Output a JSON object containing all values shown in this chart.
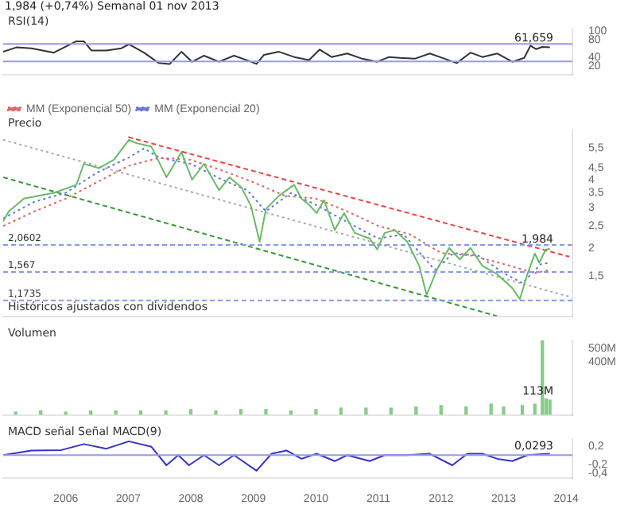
{
  "chart_data": [
    {
      "type": "line",
      "title": "1,984 (+0,74%)   Semanal 01 nov 2013",
      "subtitle": "RSI(14)",
      "xlim": [
        2005.0,
        2014.1
      ],
      "ylim": [
        0,
        105
      ],
      "yticks": [
        20,
        40,
        80,
        100
      ],
      "tick_labels": "y",
      "grid": false,
      "legend": false,
      "ref_lines": [
        {
          "axis": "y",
          "value": 70,
          "color": "#9999ee"
        },
        {
          "axis": "y",
          "value": 30,
          "color": "#9999ee"
        }
      ],
      "annotations": [
        {
          "text": "61,659",
          "y": 62
        }
      ],
      "series": [
        {
          "color": "#333333",
          "x": [
            2005.0,
            2005.21,
            2005.45,
            2005.81,
            2006.17,
            2006.29,
            2006.41,
            2006.65,
            2006.89,
            2007.01,
            2007.25,
            2007.49,
            2007.66,
            2007.85,
            2008.02,
            2008.21,
            2008.45,
            2008.69,
            2008.93,
            2009.05,
            2009.17,
            2009.41,
            2009.65,
            2009.89,
            2010.06,
            2010.25,
            2010.5,
            2010.74,
            2010.98,
            2011.17,
            2011.34,
            2011.58,
            2011.82,
            2012.06,
            2012.25,
            2012.47,
            2012.66,
            2012.9,
            2013.14,
            2013.33,
            2013.43,
            2013.52,
            2013.62,
            2013.74
          ],
          "values": [
            52,
            62,
            60,
            50,
            76,
            76,
            55,
            55,
            60,
            69,
            50,
            26,
            24,
            52,
            29,
            43,
            29,
            43,
            31,
            24,
            45,
            52,
            40,
            33,
            57,
            40,
            48,
            36,
            29,
            40,
            38,
            36,
            48,
            36,
            26,
            50,
            40,
            48,
            29,
            38,
            66,
            58,
            63,
            62
          ]
        }
      ]
    },
    {
      "type": "line",
      "title": "Precio",
      "xlim": [
        2005.0,
        2014.1
      ],
      "ylim": [
        1,
        6.6
      ],
      "log": true,
      "tick_labels": "y",
      "grid": false,
      "legend": "top left",
      "yticks": [
        {
          "value": 1.5,
          "label": "1,5"
        },
        2,
        {
          "value": 2.5,
          "label": "2,5"
        },
        3,
        {
          "value": 3.5,
          "label": "3,5"
        },
        4,
        {
          "value": 4.5,
          "label": "4,5"
        },
        {
          "value": 5.5,
          "label": "5,5"
        }
      ],
      "ref_lines": [
        {
          "axis": "y",
          "value": 2.0602,
          "label": "2,0602",
          "color": "#8899ee",
          "line_style": "dashed"
        },
        {
          "axis": "y",
          "value": 1.567,
          "label": "1,567",
          "color": "#8899ee",
          "line_style": "dashed"
        },
        {
          "axis": "y",
          "value": 1.1735,
          "label": "1,1735",
          "color": "#8899ee",
          "line_style": "dashed"
        }
      ],
      "annotations": [
        "Históricos ajustados con dividendos",
        {
          "text": "1,984",
          "y": 1.984
        }
      ],
      "series": [
        {
          "color": "#66bb66",
          "x": [
            2005.0,
            2005.09,
            2005.33,
            2005.81,
            2006.17,
            2006.29,
            2006.53,
            2006.77,
            2007.01,
            2007.13,
            2007.37,
            2007.61,
            2007.85,
            2008.02,
            2008.21,
            2008.45,
            2008.62,
            2008.81,
            2008.96,
            2009.1,
            2009.2,
            2009.41,
            2009.65,
            2009.77,
            2009.89,
            2010.01,
            2010.13,
            2010.3,
            2010.45,
            2010.62,
            2010.86,
            2010.98,
            2011.1,
            2011.26,
            2011.46,
            2011.65,
            2011.77,
            2011.94,
            2012.13,
            2012.3,
            2012.47,
            2012.66,
            2012.9,
            2013.14,
            2013.26,
            2013.38,
            2013.5,
            2013.57,
            2013.67,
            2013.74
          ],
          "values": [
            2.62,
            2.9,
            3.3,
            3.5,
            3.8,
            4.7,
            4.5,
            4.9,
            6.0,
            5.8,
            5.6,
            4.1,
            5.3,
            4.0,
            4.7,
            3.6,
            4.1,
            3.7,
            3.07,
            2.13,
            2.97,
            3.4,
            3.8,
            3.3,
            3.1,
            2.85,
            3.25,
            2.4,
            2.85,
            2.33,
            2.2,
            1.97,
            2.33,
            2.4,
            2.13,
            1.67,
            1.24,
            1.62,
            2.0,
            1.78,
            2.0,
            1.67,
            1.53,
            1.33,
            1.19,
            1.53,
            1.89,
            1.72,
            1.96,
            1.984
          ]
        },
        {
          "name": "MM (Exponencial 50)",
          "color": "#dd6666",
          "line_style": "dotted",
          "x": [
            2005.0,
            2005.5,
            2006.0,
            2006.5,
            2007.0,
            2007.5,
            2008.0,
            2008.5,
            2009.0,
            2009.5,
            2010.0,
            2010.5,
            2011.0,
            2011.5,
            2012.0,
            2012.5,
            2013.0,
            2013.5,
            2013.74
          ],
          "values": [
            2.5,
            2.9,
            3.3,
            3.9,
            4.6,
            5.0,
            4.9,
            4.4,
            3.9,
            3.4,
            3.3,
            2.9,
            2.5,
            2.3,
            1.9,
            1.85,
            1.7,
            1.55,
            1.6
          ]
        },
        {
          "name": "MM (Exponencial 20)",
          "color": "#6677dd",
          "line_style": "dotted",
          "x": [
            2005.0,
            2005.5,
            2006.0,
            2006.5,
            2007.0,
            2007.25,
            2007.5,
            2008.0,
            2008.5,
            2008.9,
            2009.2,
            2009.6,
            2010.0,
            2010.5,
            2011.0,
            2011.4,
            2011.9,
            2012.2,
            2012.6,
            2013.0,
            2013.3,
            2013.6,
            2013.74
          ],
          "values": [
            2.7,
            3.2,
            3.5,
            4.3,
            5.0,
            5.5,
            5.0,
            4.7,
            4.0,
            3.6,
            2.9,
            3.5,
            3.1,
            2.6,
            2.2,
            2.3,
            1.6,
            1.9,
            1.85,
            1.55,
            1.4,
            1.7,
            1.72
          ]
        },
        {
          "color": "#ee4444",
          "line_style": "dashed",
          "x": [
            2007.0,
            2014.05
          ],
          "values": [
            6.17,
            1.83
          ]
        },
        {
          "color": "#aaaaaa",
          "line_style": "dotted",
          "x": [
            2005.0,
            2014.05
          ],
          "values": [
            6.0,
            1.22
          ]
        },
        {
          "color": "#339933",
          "line_style": "dashed",
          "x": [
            2005.0,
            2012.9
          ],
          "values": [
            4.1,
            1.0
          ]
        }
      ]
    },
    {
      "type": "bar",
      "title": "Volumen",
      "xlim": [
        2005.0,
        2014.1
      ],
      "ylim": [
        0,
        560
      ],
      "yticks": [
        {
          "value": 400,
          "label": "400M"
        },
        {
          "value": 500,
          "label": "500M"
        }
      ],
      "tick_labels": "y",
      "grid": false,
      "legend": false,
      "annotations": [
        {
          "text": "113M",
          "y": 110
        }
      ],
      "series": [
        {
          "color": "#88cc88",
          "x": [
            2005.2,
            2005.6,
            2006.0,
            2006.4,
            2006.8,
            2007.2,
            2007.6,
            2008.0,
            2008.4,
            2008.8,
            2009.2,
            2009.6,
            2010.0,
            2010.4,
            2010.8,
            2011.2,
            2011.6,
            2012.0,
            2012.4,
            2012.8,
            2013.0,
            2013.3,
            2013.5,
            2013.62,
            2013.68,
            2013.74
          ],
          "values": [
            20,
            30,
            20,
            30,
            30,
            30,
            30,
            40,
            30,
            40,
            40,
            30,
            40,
            50,
            50,
            50,
            60,
            70,
            60,
            80,
            60,
            70,
            80,
            560,
            120,
            110
          ]
        }
      ]
    },
    {
      "type": "line",
      "title": "MACD señal Señal MACD(9)",
      "xlim": [
        2005.0,
        2014.1
      ],
      "ylim": [
        -0.5,
        0.35
      ],
      "grid": false,
      "legend": false,
      "xticks": [
        2006,
        2007,
        2008,
        2009,
        2010,
        2011,
        2012,
        2013,
        2014
      ],
      "yticks": [
        {
          "value": 0.2,
          "label": "0,2"
        },
        {
          "value": -0.2,
          "label": "-0,2"
        },
        {
          "value": -0.4,
          "label": "-0,4"
        }
      ],
      "ref_lines": [
        {
          "axis": "y",
          "value": 0,
          "color": "#9999ee"
        }
      ],
      "annotations": [
        {
          "text": "0,0293",
          "y": 0.03
        }
      ],
      "series": [
        {
          "color": "#3333cc",
          "x": [
            2005.0,
            2005.45,
            2005.93,
            2006.29,
            2006.65,
            2007.01,
            2007.37,
            2007.61,
            2007.8,
            2007.97,
            2008.21,
            2008.45,
            2008.69,
            2009.05,
            2009.29,
            2009.53,
            2009.77,
            2010.01,
            2010.3,
            2010.5,
            2010.86,
            2011.1,
            2011.46,
            2011.82,
            2012.18,
            2012.42,
            2012.66,
            2012.9,
            2013.14,
            2013.38,
            2013.62,
            2013.74
          ],
          "values": [
            0,
            0.1,
            0.11,
            0.24,
            0.14,
            0.3,
            0.18,
            -0.22,
            0,
            -0.22,
            0,
            -0.22,
            0,
            -0.34,
            0.03,
            0.1,
            -0.08,
            0.03,
            -0.13,
            0,
            -0.13,
            0,
            0,
            0.03,
            -0.22,
            0.03,
            0.03,
            -0.08,
            -0.13,
            0,
            0.02,
            0.03
          ]
        }
      ]
    }
  ]
}
